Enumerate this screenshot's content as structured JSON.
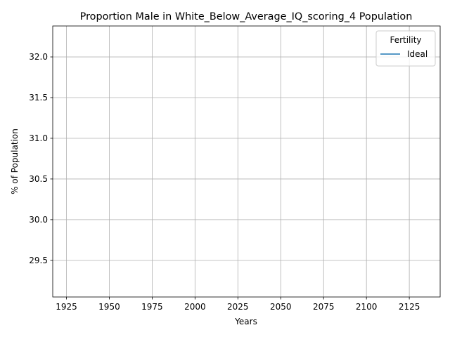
{
  "chart_data": {
    "type": "line",
    "title": "Proportion Male in White_Below_Average_IQ_scoring_4 Population",
    "xlabel": "Years",
    "ylabel": "% of Population",
    "xlim": [
      1917,
      2143
    ],
    "ylim": [
      29.05,
      32.38
    ],
    "xticks": [
      1925,
      1950,
      1975,
      2000,
      2025,
      2050,
      2075,
      2100,
      2125
    ],
    "yticks": [
      29.5,
      30.0,
      30.5,
      31.0,
      31.5,
      32.0
    ],
    "xtick_labels": [
      "1925",
      "1950",
      "1975",
      "2000",
      "2025",
      "2050",
      "2075",
      "2100",
      "2125"
    ],
    "ytick_labels": [
      "29.5",
      "30.0",
      "30.5",
      "31.0",
      "31.5",
      "32.0"
    ],
    "grid": true,
    "legend": {
      "title": "Fertility",
      "placement": "top-right"
    },
    "series": [
      {
        "name": "Ideal",
        "color": "#1f77b4",
        "x": [],
        "y": []
      }
    ]
  }
}
